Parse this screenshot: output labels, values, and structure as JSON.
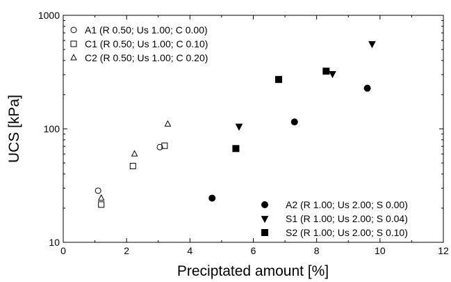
{
  "chart_data": {
    "type": "scatter",
    "title": "",
    "xlabel": "Preciptated amount [%]",
    "ylabel": "UCS [kPa]",
    "xlim": [
      0,
      12
    ],
    "ylim": [
      10,
      1000
    ],
    "y_scale": "log",
    "x_ticks": [
      0,
      2,
      4,
      6,
      8,
      10,
      12
    ],
    "x_tick_labels": [
      "0",
      "2",
      "4",
      "6",
      "8",
      "10",
      "12"
    ],
    "y_ticks": [
      10,
      100,
      1000
    ],
    "y_tick_labels": [
      "10",
      "100",
      "1000"
    ],
    "grid": false,
    "legend_placement": [
      "top-left",
      "bottom-right"
    ],
    "series": [
      {
        "name": "A1 (R 0.50; Us 1.00; C 0.00)",
        "marker": "circle",
        "filled": false,
        "x": [
          1.1,
          3.05
        ],
        "y": [
          28.5,
          69
        ]
      },
      {
        "name": "C1 (R 0.50; Us 1.00; C 0.10)",
        "marker": "square",
        "filled": false,
        "x": [
          1.2,
          2.2,
          3.2
        ],
        "y": [
          21.5,
          47,
          71
        ]
      },
      {
        "name": "C2 (R 0.50; Us 1.00; C 0.20)",
        "marker": "triangle-up",
        "filled": false,
        "x": [
          1.2,
          2.25,
          3.3
        ],
        "y": [
          24.5,
          60,
          110
        ]
      },
      {
        "name": "A2 (R 1.00; Us 2.00; S 0.00)",
        "marker": "circle",
        "filled": true,
        "x": [
          4.7,
          7.3,
          9.6
        ],
        "y": [
          24.5,
          115,
          228
        ]
      },
      {
        "name": "S1 (R 1.00; Us 2.00; S 0.04)",
        "marker": "triangle-down",
        "filled": true,
        "x": [
          5.55,
          8.5,
          9.75
        ],
        "y": [
          105,
          305,
          560
        ]
      },
      {
        "name": "S2 (R 1.00; Us 2.00; S 0.10)",
        "marker": "square",
        "filled": true,
        "x": [
          5.45,
          6.8,
          8.3
        ],
        "y": [
          67,
          272,
          322
        ]
      }
    ]
  }
}
